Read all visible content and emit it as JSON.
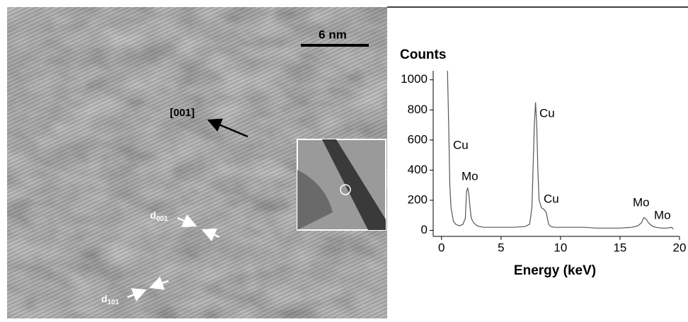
{
  "image": {
    "scale_bar": "6 nm",
    "direction": "[001]",
    "d001": {
      "main": "d",
      "sub": "001"
    },
    "d101": {
      "main": "d",
      "sub": "101"
    }
  },
  "chart_data": {
    "type": "line",
    "y_label": "Counts",
    "x_label": "Energy (keV)",
    "annotations": [
      "Cu",
      "Mo",
      "Cu",
      "Cu",
      "Mo",
      "Mo"
    ],
    "x": [
      0.5,
      0.6,
      0.7,
      0.8,
      1.0,
      1.2,
      1.5,
      1.8,
      2.0,
      2.1,
      2.2,
      2.3,
      2.4,
      2.5,
      2.7,
      3.0,
      3.5,
      4,
      5,
      6,
      7,
      7.4,
      7.6,
      7.8,
      7.9,
      8.0,
      8.1,
      8.2,
      8.4,
      8.6,
      8.8,
      9.0,
      9.2,
      9.5,
      10,
      11,
      12,
      13,
      14,
      15,
      16,
      16.5,
      16.8,
      17.0,
      17.2,
      17.4,
      17.6,
      17.8,
      18,
      18.5,
      19,
      19.3,
      19.5
    ],
    "series": [
      {
        "color": "#555555",
        "values": [
          1060,
          700,
          300,
          150,
          60,
          40,
          30,
          40,
          80,
          260,
          280,
          240,
          150,
          80,
          50,
          30,
          20,
          20,
          20,
          20,
          25,
          40,
          150,
          700,
          850,
          700,
          400,
          200,
          150,
          140,
          120,
          40,
          25,
          20,
          20,
          20,
          20,
          15,
          15,
          15,
          20,
          30,
          50,
          85,
          75,
          50,
          35,
          25,
          20,
          15,
          15,
          20,
          10
        ]
      }
    ],
    "xlim": [
      -0.7,
      20
    ],
    "ylim": [
      -40,
      1060
    ],
    "xticks": [
      0,
      5,
      10,
      15,
      20
    ],
    "yticks": [
      0,
      200,
      400,
      600,
      800,
      1000
    ]
  }
}
